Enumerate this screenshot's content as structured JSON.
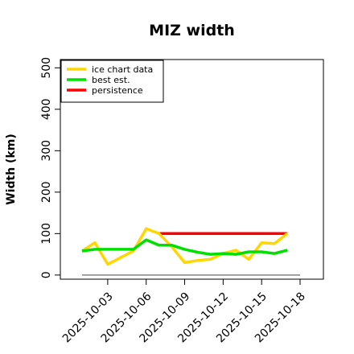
{
  "chart_data": {
    "type": "line",
    "title": "MIZ width",
    "xlabel": "",
    "ylabel": "Width (km)",
    "ylim": [
      -10,
      520
    ],
    "xlim": [
      "2025-10-01",
      "2025-10-18"
    ],
    "y_ticks": [
      0,
      100,
      200,
      300,
      400,
      500
    ],
    "x_tick_labels": [
      "2025-10-03",
      "2025-10-06",
      "2025-10-09",
      "2025-10-12",
      "2025-10-15",
      "2025-10-18"
    ],
    "x": [
      "2025-10-01",
      "2025-10-02",
      "2025-10-03",
      "2025-10-04",
      "2025-10-05",
      "2025-10-06",
      "2025-10-07",
      "2025-10-08",
      "2025-10-09",
      "2025-10-10",
      "2025-10-11",
      "2025-10-12",
      "2025-10-13",
      "2025-10-14",
      "2025-10-15",
      "2025-10-16",
      "2025-10-17",
      "2025-10-18"
    ],
    "series": [
      {
        "name": "ice chart data",
        "color": "#FFD700",
        "values": [
          58,
          78,
          26,
          42,
          58,
          112,
          100,
          68,
          30,
          35,
          38,
          52,
          60,
          38,
          78,
          76,
          100,
          null
        ]
      },
      {
        "name": "best est.",
        "color": "#00E000",
        "values": [
          58,
          62,
          62,
          62,
          62,
          85,
          72,
          72,
          62,
          55,
          50,
          52,
          50,
          56,
          56,
          52,
          60,
          null
        ]
      },
      {
        "name": "persistence",
        "color": "#FF0000",
        "values": [
          null,
          null,
          null,
          null,
          null,
          null,
          100,
          100,
          100,
          100,
          100,
          100,
          100,
          100,
          100,
          100,
          100,
          null
        ]
      }
    ],
    "reference_line": {
      "y": 0,
      "color": "#808080"
    },
    "legend_position": "top-left",
    "grid": false
  }
}
